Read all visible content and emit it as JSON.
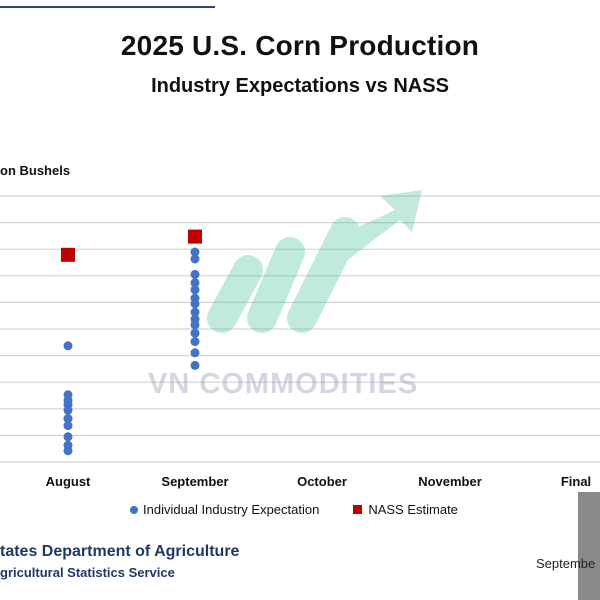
{
  "chart_data": {
    "type": "scatter",
    "title": "2025 U.S. Corn Production",
    "subtitle": "Industry Expectations vs NASS",
    "ylabel": "on Bushels",
    "categories": [
      "August",
      "September",
      "October",
      "November",
      "Final"
    ],
    "series": [
      {
        "name": "Individual Industry Expectation",
        "color": "#4472c4",
        "marker": "circle",
        "points": [
          {
            "category": "August",
            "y": 15.83
          },
          {
            "category": "August",
            "y": 15.48
          },
          {
            "category": "August",
            "y": 15.44
          },
          {
            "category": "August",
            "y": 15.41
          },
          {
            "category": "August",
            "y": 15.37
          },
          {
            "category": "August",
            "y": 15.31
          },
          {
            "category": "August",
            "y": 15.26
          },
          {
            "category": "August",
            "y": 15.18
          },
          {
            "category": "August",
            "y": 15.12
          },
          {
            "category": "August",
            "y": 15.08
          },
          {
            "category": "September",
            "y": 16.5
          },
          {
            "category": "September",
            "y": 16.45
          },
          {
            "category": "September",
            "y": 16.34
          },
          {
            "category": "September",
            "y": 16.28
          },
          {
            "category": "September",
            "y": 16.23
          },
          {
            "category": "September",
            "y": 16.17
          },
          {
            "category": "September",
            "y": 16.13
          },
          {
            "category": "September",
            "y": 16.07
          },
          {
            "category": "September",
            "y": 16.02
          },
          {
            "category": "September",
            "y": 15.98
          },
          {
            "category": "September",
            "y": 15.92
          },
          {
            "category": "September",
            "y": 15.86
          },
          {
            "category": "September",
            "y": 15.78
          },
          {
            "category": "September",
            "y": 15.69
          }
        ]
      },
      {
        "name": "NASS Estimate",
        "color": "#c00000",
        "marker": "square",
        "points": [
          {
            "category": "August",
            "y": 16.48
          },
          {
            "category": "September",
            "y": 16.61
          }
        ]
      }
    ],
    "ylim": [
      15.0,
      16.9
    ],
    "grid": true,
    "legend_position": "bottom"
  },
  "watermark": "VN COMMODITIES",
  "footer": {
    "line1": "tates Department of Agriculture",
    "line2": "gricultural Statistics Service",
    "right": "Septembe"
  }
}
